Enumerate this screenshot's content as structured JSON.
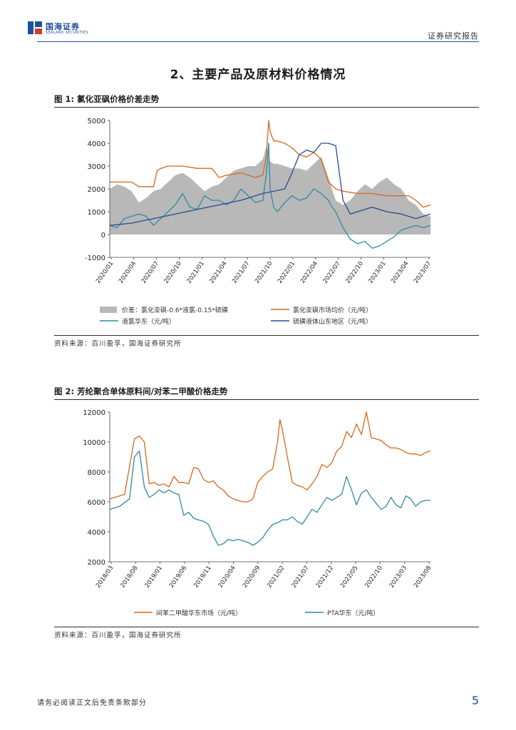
{
  "header": {
    "logo_cn": "国海证券",
    "logo_en": "SEALAND SECURITIES",
    "report_type": "证券研究报告"
  },
  "section": {
    "title": "2、主要产品及原材料价格情况"
  },
  "figures": [
    {
      "label": "图 1:",
      "title": "氯化亚砜价格价差走势",
      "source": "资料来源：百川盈孚，国海证券研究所"
    },
    {
      "label": "图 2:",
      "title": "芳纶聚合单体原料间/对苯二甲酸价格走势",
      "source": "资料来源：百川盈孚，国海证券研究所"
    }
  ],
  "footer": {
    "disclaimer": "请务必阅读正文后免责条款部分",
    "page": "5"
  },
  "colors": {
    "orange": "#d2691e",
    "teal": "#2e8ba0",
    "navy": "#2a4a8e",
    "grey": "#b8b8b8",
    "brand": "#1f4e9c"
  },
  "chart_data": [
    {
      "type": "line",
      "title": "氯化亚砜价格价差走势",
      "ylim": [
        -1000,
        5000
      ],
      "yticks": [
        -1000,
        0,
        1000,
        2000,
        3000,
        4000,
        5000
      ],
      "xlim": [
        0,
        44
      ],
      "x_ticks": [
        "2020/01",
        "2020/04",
        "2020/07",
        "2020/10",
        "2021/01",
        "2021/04",
        "2021/07",
        "2021/10",
        "2022/01",
        "2022/04",
        "2022/07",
        "2022/10",
        "2023/01",
        "2023/04",
        "2023/07"
      ],
      "series": [
        {
          "name": "价差：氯化亚砜-0.6*液氯-0.15*硫磺",
          "kind": "area",
          "color": "#b8b8b8",
          "x": [
            0,
            1,
            2,
            3,
            4,
            5,
            6,
            7,
            8,
            9,
            10,
            11,
            12,
            13,
            14,
            15,
            16,
            17,
            18,
            19,
            20,
            21,
            21.5,
            22,
            22.5,
            23,
            24,
            25,
            26,
            27,
            28,
            29,
            30,
            31,
            32,
            33,
            34,
            35,
            36,
            37,
            38,
            39,
            40,
            41,
            42,
            43,
            44
          ],
          "y": [
            2000,
            2200,
            2100,
            1900,
            1400,
            1600,
            1900,
            2000,
            2300,
            2600,
            2700,
            2500,
            2200,
            1900,
            2100,
            2200,
            2500,
            2800,
            2900,
            3000,
            3000,
            3300,
            3900,
            3200,
            3100,
            3100,
            3000,
            2900,
            2900,
            2800,
            3100,
            3400,
            2500,
            1500,
            1300,
            1500,
            1900,
            2200,
            2000,
            2300,
            2500,
            2200,
            2000,
            1500,
            1300,
            900,
            800
          ]
        },
        {
          "name": "氯化亚砜市场均价（元/吨）",
          "kind": "line",
          "color": "#d2691e",
          "x": [
            0,
            2,
            3,
            4,
            5,
            6,
            6.5,
            7,
            8,
            9,
            10,
            12,
            14,
            15,
            16,
            18,
            19,
            20,
            21,
            21.5,
            21.8,
            22,
            22.5,
            23,
            24,
            25,
            26,
            27,
            28,
            29,
            29.5,
            30,
            31,
            32,
            34,
            36,
            38,
            39,
            40,
            41,
            42,
            43,
            44
          ],
          "y": [
            2300,
            2300,
            2300,
            2100,
            2100,
            2100,
            2800,
            2900,
            3000,
            3000,
            3000,
            2900,
            2900,
            2500,
            2600,
            2700,
            2600,
            2500,
            2600,
            3500,
            5000,
            4500,
            4100,
            4100,
            4000,
            3800,
            3500,
            3400,
            3600,
            3300,
            2800,
            2300,
            2000,
            1900,
            1800,
            1800,
            1700,
            1700,
            1700,
            1700,
            1500,
            1200,
            1300
          ]
        },
        {
          "name": "液氯华东（元/吨）",
          "kind": "line",
          "color": "#2e8ba0",
          "x": [
            0,
            1,
            2,
            3,
            4,
            5,
            6,
            7,
            8,
            9,
            10,
            11,
            12,
            13,
            14,
            15,
            16,
            17,
            18,
            19,
            20,
            21,
            21.5,
            21.8,
            22,
            22.5,
            23,
            24,
            25,
            26,
            27,
            28,
            29,
            30,
            30.5,
            31,
            32,
            33,
            34,
            35,
            36,
            37,
            38,
            39,
            40,
            41,
            42,
            43,
            44
          ],
          "y": [
            400,
            300,
            700,
            800,
            900,
            800,
            400,
            700,
            1000,
            1300,
            1800,
            1200,
            1100,
            1700,
            1500,
            1500,
            1300,
            1500,
            2000,
            1700,
            1400,
            1500,
            2700,
            4000,
            2000,
            1200,
            1000,
            1400,
            1700,
            1500,
            1600,
            2000,
            1800,
            1500,
            1200,
            1000,
            300,
            -200,
            -400,
            -300,
            -600,
            -500,
            -300,
            -100,
            200,
            300,
            400,
            300,
            400
          ]
        },
        {
          "name": "硫磺液体山东地区（元/吨）",
          "kind": "line",
          "color": "#2a4a8e",
          "x": [
            0,
            3,
            6,
            9,
            12,
            15,
            18,
            21,
            24,
            25,
            26,
            27,
            28,
            29,
            30,
            31,
            32,
            33,
            34,
            36,
            38,
            40,
            42,
            44
          ],
          "y": [
            400,
            500,
            700,
            900,
            1100,
            1300,
            1500,
            1800,
            2000,
            2700,
            3500,
            3700,
            3600,
            4000,
            4000,
            3900,
            1500,
            900,
            1000,
            1200,
            1000,
            900,
            700,
            900
          ]
        }
      ]
    },
    {
      "type": "line",
      "title": "芳纶聚合单体原料间/对苯二甲酸价格走势",
      "ylim": [
        2000,
        12000
      ],
      "yticks": [
        2000,
        4000,
        6000,
        8000,
        10000,
        12000
      ],
      "xlim": [
        0,
        65
      ],
      "x_ticks": [
        "2018/03",
        "2018/08",
        "2019/01",
        "2019/06",
        "2019/11",
        "2020/04",
        "2020/09",
        "2021/02",
        "2021/07",
        "2021/12",
        "2022/05",
        "2022/10",
        "2023/03",
        "2023/08"
      ],
      "series": [
        {
          "name": "间苯二甲酸华东市场（元/吨）",
          "color": "#d2691e",
          "x": [
            0,
            3,
            5,
            6,
            7,
            8,
            9,
            10,
            11,
            12,
            13,
            14,
            15,
            16,
            17,
            18,
            19,
            20,
            21,
            22,
            23,
            24,
            25,
            26,
            27,
            28,
            29,
            30,
            31,
            32,
            33,
            34,
            34.5,
            35,
            36,
            37,
            38,
            39,
            40,
            41,
            42,
            43,
            44,
            45,
            46,
            47,
            48,
            49,
            50,
            51,
            52,
            53,
            54,
            55,
            56,
            57,
            58,
            59,
            60,
            61,
            62,
            63,
            64,
            65
          ],
          "y": [
            6200,
            6500,
            10200,
            10400,
            10000,
            7200,
            7300,
            7100,
            7200,
            7000,
            7700,
            7300,
            7300,
            7200,
            8300,
            8200,
            7500,
            7300,
            7400,
            7000,
            6800,
            6400,
            6200,
            6100,
            6000,
            6000,
            6200,
            7300,
            7700,
            8000,
            8200,
            10000,
            11500,
            10800,
            9000,
            7300,
            7100,
            7000,
            6800,
            7200,
            7700,
            8500,
            8300,
            8600,
            9400,
            9700,
            10700,
            10300,
            11200,
            10500,
            12000,
            10300,
            10200,
            10100,
            9800,
            9600,
            9600,
            9500,
            9300,
            9200,
            9200,
            9100,
            9300,
            9400
          ]
        },
        {
          "name": "PTA华东（元/吨）",
          "color": "#2e8ba0",
          "x": [
            0,
            2,
            4,
            5,
            6,
            7,
            8,
            9,
            10,
            11,
            12,
            13,
            14,
            15,
            16,
            17,
            18,
            19,
            20,
            21,
            22,
            23,
            24,
            25,
            26,
            27,
            28,
            29,
            30,
            31,
            32,
            33,
            34,
            35,
            36,
            37,
            38,
            39,
            40,
            41,
            42,
            43,
            44,
            45,
            46,
            47,
            48,
            49,
            50,
            51,
            52,
            53,
            54,
            55,
            56,
            57,
            58,
            59,
            60,
            61,
            62,
            63,
            64,
            65
          ],
          "y": [
            5500,
            5700,
            6200,
            9000,
            9400,
            7000,
            6300,
            6500,
            6800,
            6600,
            6800,
            6600,
            6500,
            5100,
            5300,
            4900,
            4800,
            4700,
            4500,
            3700,
            3100,
            3200,
            3500,
            3400,
            3500,
            3400,
            3300,
            3100,
            3300,
            3600,
            4100,
            4500,
            4600,
            4800,
            4800,
            5000,
            4700,
            4500,
            5000,
            5500,
            5300,
            5800,
            6300,
            6100,
            6300,
            6500,
            7700,
            6800,
            5800,
            6600,
            6800,
            6300,
            5900,
            5500,
            5700,
            6300,
            5800,
            5600,
            6400,
            6200,
            5700,
            6000,
            6100,
            6100
          ]
        }
      ]
    }
  ]
}
